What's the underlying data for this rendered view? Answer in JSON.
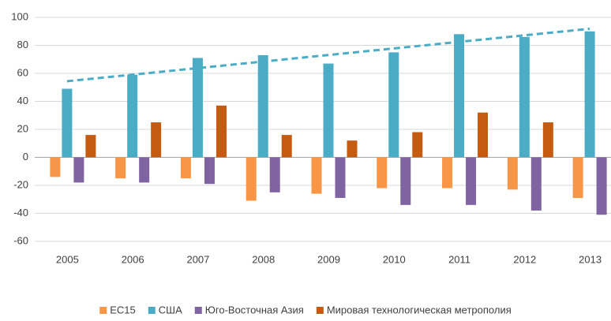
{
  "chart_data": {
    "type": "bar",
    "categories": [
      "2005",
      "2006",
      "2007",
      "2008",
      "2009",
      "2010",
      "2011",
      "2012",
      "2013"
    ],
    "series": [
      {
        "name": "ЕС15",
        "color": "#f79646",
        "values": [
          -14,
          -15,
          -15,
          -31,
          -26,
          -22,
          -22,
          -23,
          -29
        ]
      },
      {
        "name": "США",
        "color": "#4bacc6",
        "values": [
          49,
          59,
          71,
          73,
          67,
          75,
          88,
          86,
          90
        ],
        "trendline": true
      },
      {
        "name": "Юго-Восточная Азия",
        "color": "#8064a2",
        "values": [
          -18,
          -18,
          -19,
          -25,
          -29,
          -34,
          -34,
          -38,
          -41
        ]
      },
      {
        "name": "Мировая технологическая метрополия",
        "color": "#c55a11",
        "values": [
          16,
          25,
          37,
          16,
          12,
          18,
          32,
          25,
          null
        ]
      }
    ],
    "ylim": [
      -60,
      100
    ],
    "yticks": [
      -60,
      -40,
      -20,
      0,
      20,
      40,
      60,
      80,
      100
    ],
    "grid": true,
    "legend": "bottom"
  }
}
